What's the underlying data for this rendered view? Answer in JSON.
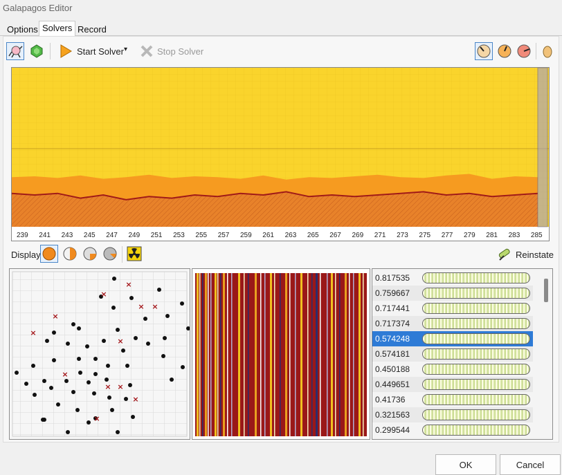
{
  "window": {
    "title": "Galapagos Editor"
  },
  "tabs": [
    {
      "label": "Options"
    },
    {
      "label": "Solvers"
    },
    {
      "label": "Record"
    }
  ],
  "toolbar": {
    "start_label": "Start Solver",
    "stop_label": "Stop Solver"
  },
  "chart_data": {
    "type": "area",
    "categories": [
      "239",
      "241",
      "243",
      "245",
      "247",
      "249",
      "251",
      "253",
      "255",
      "257",
      "259",
      "261",
      "263",
      "265",
      "267",
      "269",
      "271",
      "273",
      "275",
      "277",
      "279",
      "281",
      "283",
      "285"
    ],
    "series": [
      {
        "values": [
          0.6,
          0.61,
          0.59,
          0.62,
          0.58,
          0.6,
          0.63,
          0.59,
          0.61,
          0.6,
          0.58,
          0.62,
          0.57,
          0.6,
          0.59,
          0.61,
          0.63,
          0.6,
          0.59,
          0.62,
          0.64,
          0.58,
          0.61,
          0.6
        ]
      },
      {
        "values": [
          0.21,
          0.2,
          0.21,
          0.18,
          0.2,
          0.17,
          0.19,
          0.18,
          0.2,
          0.19,
          0.21,
          0.2,
          0.22,
          0.19,
          0.2,
          0.19,
          0.2,
          0.21,
          0.22,
          0.2,
          0.21,
          0.19,
          0.2,
          0.21
        ]
      }
    ],
    "colors": {
      "background": "#fad42c",
      "middle": "#f69b20",
      "lower": "#e8822a",
      "line": "#a01a18"
    }
  },
  "display": {
    "label": "Display",
    "reinstate_label": "Reinstate"
  },
  "genome_list": [
    {
      "value": "0.817535"
    },
    {
      "value": "0.759667"
    },
    {
      "value": "0.717441"
    },
    {
      "value": "0.717374"
    },
    {
      "value": "0.574248"
    },
    {
      "value": "0.574181"
    },
    {
      "value": "0.450188"
    },
    {
      "value": "0.449651"
    },
    {
      "value": "0.41736"
    },
    {
      "value": "0.321563"
    },
    {
      "value": "0.299544"
    }
  ],
  "footer": {
    "ok": "OK",
    "cancel": "Cancel"
  }
}
